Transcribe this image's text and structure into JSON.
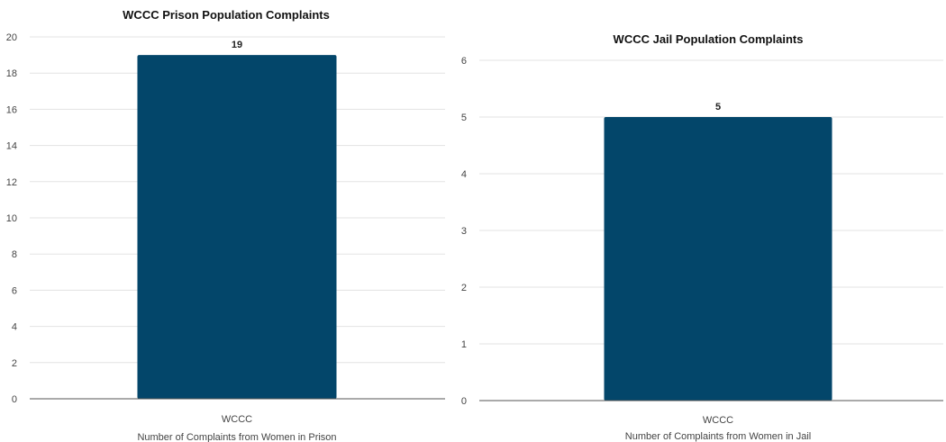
{
  "chart_data": [
    {
      "type": "bar",
      "title": "WCCC Prison Population Complaints",
      "categories": [
        "WCCC"
      ],
      "values": [
        19
      ],
      "data_labels": [
        "19"
      ],
      "xlabel": "Number of Complaints from Women in Prison",
      "ylabel": "",
      "ylim": [
        0,
        20
      ],
      "yticks": [
        0,
        2,
        4,
        6,
        8,
        10,
        12,
        14,
        16,
        18,
        20
      ],
      "grid": true,
      "legend": "none",
      "bar_color": "#03466a"
    },
    {
      "type": "bar",
      "title": "WCCC Jail Population Complaints",
      "categories": [
        "WCCC"
      ],
      "values": [
        5
      ],
      "data_labels": [
        "5"
      ],
      "xlabel": "Number of Complaints from Women in Jail",
      "ylabel": "",
      "ylim": [
        0,
        6
      ],
      "yticks": [
        0,
        1,
        2,
        3,
        4,
        5,
        6
      ],
      "grid": true,
      "legend": "none",
      "bar_color": "#03466a"
    }
  ]
}
